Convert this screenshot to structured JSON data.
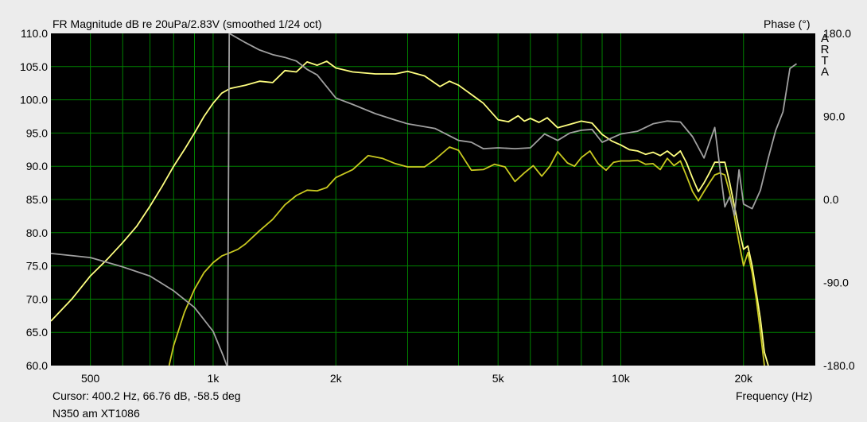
{
  "header": {
    "title": "FR Magnitude dB re 20uPa/2.83V (smoothed 1/24 oct)",
    "phase_title": "Phase (°)",
    "brand_letters": [
      "A",
      "R",
      "T",
      "A"
    ]
  },
  "footer": {
    "cursor": "Cursor: 400.2 Hz, 66.76 dB, -58.5 deg",
    "legend": "N350 am XT1086",
    "xlabel": "Frequency (Hz)"
  },
  "chart_data": {
    "type": "line",
    "title": "FR Magnitude dB re 20uPa/2.83V (smoothed 1/24 oct)",
    "xlabel": "Frequency (Hz)",
    "ylabel": "",
    "y2label": "Phase (°)",
    "x_scale": "log",
    "xlim": [
      400,
      30000
    ],
    "ylim": [
      60,
      110
    ],
    "y2lim": [
      -180,
      180
    ],
    "grid": true,
    "background": "#000000",
    "grid_color": "#008000",
    "x_ticks": [
      {
        "value": 500,
        "label": "500"
      },
      {
        "value": 1000,
        "label": "1k"
      },
      {
        "value": 2000,
        "label": "2k"
      },
      {
        "value": 5000,
        "label": "5k"
      },
      {
        "value": 10000,
        "label": "10k"
      },
      {
        "value": 20000,
        "label": "20k"
      }
    ],
    "x_minor_gridlines": [
      500,
      600,
      700,
      800,
      900,
      1000,
      2000,
      3000,
      4000,
      5000,
      6000,
      7000,
      8000,
      9000,
      10000,
      20000
    ],
    "y_ticks": [
      "60.0",
      "65.0",
      "70.0",
      "75.0",
      "80.0",
      "85.0",
      "90.0",
      "95.0",
      "100.0",
      "105.0",
      "110.0"
    ],
    "y2_ticks": [
      {
        "value": 180,
        "label": "180.0"
      },
      {
        "value": 90,
        "label": "90.0"
      },
      {
        "value": 0,
        "label": "0.0"
      },
      {
        "value": -90,
        "label": "-90.0"
      },
      {
        "value": -180,
        "label": "-180.0"
      }
    ],
    "series": [
      {
        "color": "#ffff80",
        "axis": "left",
        "points": [
          [
            400,
            66.7
          ],
          [
            450,
            70
          ],
          [
            500,
            73.5
          ],
          [
            550,
            76
          ],
          [
            600,
            78.5
          ],
          [
            650,
            81
          ],
          [
            700,
            84
          ],
          [
            750,
            87
          ],
          [
            800,
            90
          ],
          [
            850,
            92.5
          ],
          [
            900,
            95
          ],
          [
            950,
            97.5
          ],
          [
            1000,
            99.5
          ],
          [
            1050,
            101
          ],
          [
            1100,
            101.7
          ],
          [
            1200,
            102.2
          ],
          [
            1300,
            102.8
          ],
          [
            1400,
            102.6
          ],
          [
            1500,
            104.4
          ],
          [
            1600,
            104.2
          ],
          [
            1700,
            105.7
          ],
          [
            1800,
            105.2
          ],
          [
            1900,
            105.8
          ],
          [
            2000,
            104.8
          ],
          [
            2200,
            104.2
          ],
          [
            2500,
            103.9
          ],
          [
            2800,
            103.9
          ],
          [
            3000,
            104.3
          ],
          [
            3300,
            103.6
          ],
          [
            3600,
            102
          ],
          [
            3800,
            102.8
          ],
          [
            4000,
            102.2
          ],
          [
            4300,
            100.8
          ],
          [
            4600,
            99.5
          ],
          [
            5000,
            97
          ],
          [
            5300,
            96.7
          ],
          [
            5600,
            97.6
          ],
          [
            5800,
            96.8
          ],
          [
            6000,
            97.2
          ],
          [
            6300,
            96.6
          ],
          [
            6600,
            97.3
          ],
          [
            7000,
            95.8
          ],
          [
            7500,
            96.3
          ],
          [
            8000,
            96.8
          ],
          [
            8500,
            96.5
          ],
          [
            9000,
            94.8
          ],
          [
            9500,
            93.8
          ],
          [
            10000,
            93.2
          ],
          [
            10500,
            92.5
          ],
          [
            11000,
            92.3
          ],
          [
            11500,
            91.8
          ],
          [
            12000,
            92.1
          ],
          [
            12500,
            91.6
          ],
          [
            13000,
            92.3
          ],
          [
            13500,
            91.5
          ],
          [
            14000,
            92.3
          ],
          [
            14500,
            90.5
          ],
          [
            15000,
            88.2
          ],
          [
            15500,
            86.2
          ],
          [
            16000,
            87.5
          ],
          [
            16500,
            89
          ],
          [
            17000,
            90.6
          ],
          [
            17500,
            90.6
          ],
          [
            18000,
            90.6
          ],
          [
            18500,
            87.5
          ],
          [
            19000,
            84
          ],
          [
            19500,
            80.5
          ],
          [
            20000,
            77.5
          ],
          [
            20500,
            78
          ],
          [
            21000,
            75
          ],
          [
            21500,
            71
          ],
          [
            22000,
            67
          ],
          [
            22500,
            62
          ],
          [
            23000,
            60
          ]
        ]
      },
      {
        "color": "#c8c820",
        "axis": "left",
        "points": [
          [
            780,
            60
          ],
          [
            800,
            63
          ],
          [
            850,
            68
          ],
          [
            900,
            71.5
          ],
          [
            950,
            74
          ],
          [
            1000,
            75.5
          ],
          [
            1050,
            76.5
          ],
          [
            1100,
            77
          ],
          [
            1150,
            77.5
          ],
          [
            1200,
            78.3
          ],
          [
            1300,
            80.3
          ],
          [
            1400,
            82
          ],
          [
            1500,
            84.2
          ],
          [
            1600,
            85.6
          ],
          [
            1700,
            86.4
          ],
          [
            1800,
            86.3
          ],
          [
            1900,
            86.8
          ],
          [
            2000,
            88.3
          ],
          [
            2200,
            89.5
          ],
          [
            2400,
            91.6
          ],
          [
            2600,
            91.2
          ],
          [
            2800,
            90.4
          ],
          [
            3000,
            89.9
          ],
          [
            3300,
            89.9
          ],
          [
            3500,
            91
          ],
          [
            3800,
            92.9
          ],
          [
            4000,
            92.4
          ],
          [
            4300,
            89.4
          ],
          [
            4600,
            89.5
          ],
          [
            4900,
            90.3
          ],
          [
            5200,
            89.9
          ],
          [
            5500,
            87.7
          ],
          [
            5800,
            89
          ],
          [
            6100,
            90.1
          ],
          [
            6400,
            88.5
          ],
          [
            6700,
            90
          ],
          [
            7000,
            92.2
          ],
          [
            7400,
            90.5
          ],
          [
            7700,
            90
          ],
          [
            8000,
            91.3
          ],
          [
            8400,
            92.3
          ],
          [
            8800,
            90.4
          ],
          [
            9200,
            89.4
          ],
          [
            9600,
            90.6
          ],
          [
            10000,
            90.8
          ],
          [
            10500,
            90.8
          ],
          [
            11000,
            90.9
          ],
          [
            11500,
            90.3
          ],
          [
            12000,
            90.4
          ],
          [
            12500,
            89.5
          ],
          [
            13000,
            91.2
          ],
          [
            13500,
            90.1
          ],
          [
            14000,
            90.8
          ],
          [
            14500,
            88.5
          ],
          [
            15000,
            86.2
          ],
          [
            15500,
            84.8
          ],
          [
            16000,
            86.2
          ],
          [
            16500,
            87.5
          ],
          [
            17000,
            88.7
          ],
          [
            17500,
            89
          ],
          [
            18000,
            88.7
          ],
          [
            18500,
            86
          ],
          [
            19000,
            82.5
          ],
          [
            19500,
            78.5
          ],
          [
            20000,
            75
          ],
          [
            20500,
            77
          ],
          [
            21000,
            74
          ],
          [
            21500,
            70
          ],
          [
            22000,
            65
          ],
          [
            22500,
            60
          ]
        ]
      },
      {
        "color": "#a0a0a0",
        "axis": "right",
        "points": [
          [
            400,
            -58.5
          ],
          [
            500,
            -63
          ],
          [
            600,
            -73
          ],
          [
            700,
            -83
          ],
          [
            800,
            -99
          ],
          [
            900,
            -117
          ],
          [
            1000,
            -143
          ],
          [
            1060,
            -170
          ],
          [
            1080,
            -180
          ],
          [
            1085,
            -180
          ],
          [
            1095,
            180
          ],
          [
            1200,
            170
          ],
          [
            1300,
            162
          ],
          [
            1400,
            157
          ],
          [
            1500,
            154
          ],
          [
            1600,
            150
          ],
          [
            1700,
            141
          ],
          [
            1800,
            135
          ],
          [
            2000,
            110
          ],
          [
            2200,
            103
          ],
          [
            2500,
            93
          ],
          [
            2800,
            86
          ],
          [
            3000,
            82
          ],
          [
            3500,
            77
          ],
          [
            4000,
            64
          ],
          [
            4300,
            62
          ],
          [
            4600,
            55
          ],
          [
            5000,
            56
          ],
          [
            5500,
            55
          ],
          [
            6000,
            56
          ],
          [
            6500,
            71
          ],
          [
            7000,
            64
          ],
          [
            7500,
            72
          ],
          [
            8000,
            75
          ],
          [
            8500,
            76
          ],
          [
            9000,
            62
          ],
          [
            10000,
            71
          ],
          [
            11000,
            74
          ],
          [
            12000,
            82
          ],
          [
            13000,
            85
          ],
          [
            14000,
            84
          ],
          [
            15000,
            68
          ],
          [
            16000,
            45
          ],
          [
            17000,
            78
          ],
          [
            18000,
            -8
          ],
          [
            18500,
            3
          ],
          [
            19000,
            -17
          ],
          [
            19500,
            32
          ],
          [
            20000,
            -5
          ],
          [
            21000,
            -10
          ],
          [
            22000,
            10
          ],
          [
            23000,
            45
          ],
          [
            24000,
            75
          ],
          [
            25000,
            95
          ],
          [
            26000,
            142
          ],
          [
            27000,
            147
          ]
        ]
      }
    ]
  }
}
